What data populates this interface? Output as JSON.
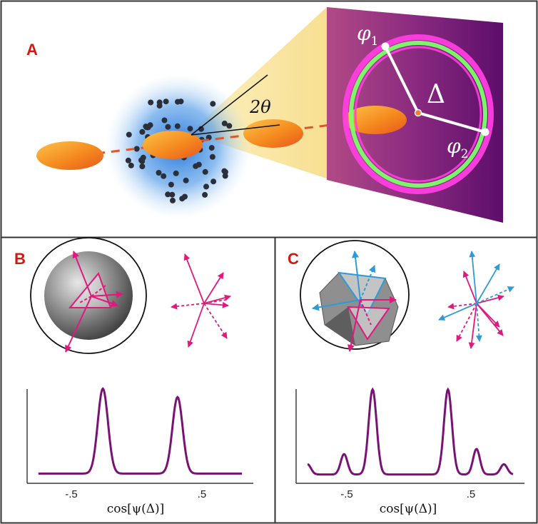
{
  "panels": {
    "a": {
      "label": "A"
    },
    "b": {
      "label": "B"
    },
    "c": {
      "label": "C"
    }
  },
  "annotations": {
    "angle": "2θ",
    "phi1_base": "φ",
    "phi1_sub": "1",
    "phi2_base": "φ",
    "phi2_sub": "2",
    "delta": "Δ"
  },
  "plots": {
    "b": {
      "ticks": [
        "-.5",
        ".5"
      ],
      "xlabel": "cos[ψ(Δ)]"
    },
    "c": {
      "ticks": [
        "-.5",
        ".5"
      ],
      "xlabel": "cos[ψ(Δ)]"
    }
  },
  "colors": {
    "panel_label": "#d11a12",
    "curve": "#7a1275",
    "vector_magenta": "#e0197d",
    "vector_blue": "#2f9bd6",
    "detector_purple": "#6a1070",
    "ring_magenta": "#ff3ee0",
    "ring_green": "#7dff6a",
    "beam_cone": "#fbe38c",
    "particle_orange": "#f58a1f"
  },
  "chart_data": [
    {
      "type": "line",
      "panel": "B",
      "title": "",
      "xlabel": "cos[ψ(Δ)]",
      "ylabel": "",
      "xlim": [
        -1,
        1
      ],
      "ylim": [
        0,
        1
      ],
      "grid": false,
      "x_ticks": [
        -0.5,
        0.5
      ],
      "peaks": [
        {
          "x": -0.33,
          "height": 1.0,
          "width": 0.045
        },
        {
          "x": 0.33,
          "height": 0.9,
          "width": 0.045
        }
      ],
      "baseline": 0.03
    },
    {
      "type": "line",
      "panel": "C",
      "title": "",
      "xlabel": "cos[ψ(Δ)]",
      "ylabel": "",
      "xlim": [
        -1,
        1
      ],
      "ylim": [
        0,
        1
      ],
      "grid": false,
      "x_ticks": [
        -0.5,
        0.5
      ],
      "peaks": [
        {
          "x": -0.9,
          "height": 0.12,
          "width": 0.03
        },
        {
          "x": -0.58,
          "height": 0.24,
          "width": 0.03
        },
        {
          "x": -0.33,
          "height": 1.0,
          "width": 0.035
        },
        {
          "x": 0.33,
          "height": 1.0,
          "width": 0.035
        },
        {
          "x": 0.58,
          "height": 0.3,
          "width": 0.03
        },
        {
          "x": 0.82,
          "height": 0.12,
          "width": 0.03
        }
      ],
      "baseline": 0.02
    }
  ]
}
